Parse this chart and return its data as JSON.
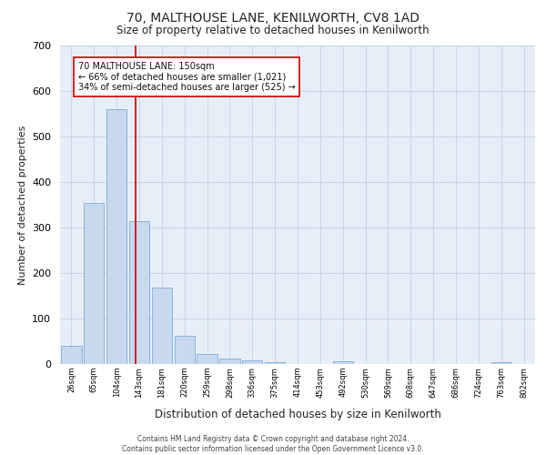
{
  "title1": "70, MALTHOUSE LANE, KENILWORTH, CV8 1AD",
  "title2": "Size of property relative to detached houses in Kenilworth",
  "xlabel": "Distribution of detached houses by size in Kenilworth",
  "ylabel": "Number of detached properties",
  "bar_values": [
    40,
    355,
    560,
    315,
    168,
    62,
    23,
    12,
    8,
    5,
    0,
    0,
    6,
    0,
    0,
    0,
    0,
    0,
    0,
    5,
    0
  ],
  "bar_labels": [
    "26sqm",
    "65sqm",
    "104sqm",
    "143sqm",
    "181sqm",
    "220sqm",
    "259sqm",
    "298sqm",
    "336sqm",
    "375sqm",
    "414sqm",
    "453sqm",
    "492sqm",
    "530sqm",
    "569sqm",
    "608sqm",
    "647sqm",
    "686sqm",
    "724sqm",
    "763sqm",
    "802sqm"
  ],
  "bar_color": "#c8d8ee",
  "bar_edge_color": "#7badd4",
  "grid_color": "#c8d4e8",
  "background_color": "#e8eef8",
  "vline_color": "#cc0000",
  "annotation_line1": "70 MALTHOUSE LANE: 150sqm",
  "annotation_line2": "← 66% of detached houses are smaller (1,021)",
  "annotation_line3": "34% of semi-detached houses are larger (525) →",
  "annotation_box_color": "#ffffff",
  "annotation_box_edge": "#cc0000",
  "ylim": [
    0,
    700
  ],
  "yticks": [
    0,
    100,
    200,
    300,
    400,
    500,
    600,
    700
  ],
  "footer1": "Contains HM Land Registry data © Crown copyright and database right 2024.",
  "footer2": "Contains public sector information licensed under the Open Government Licence v3.0."
}
